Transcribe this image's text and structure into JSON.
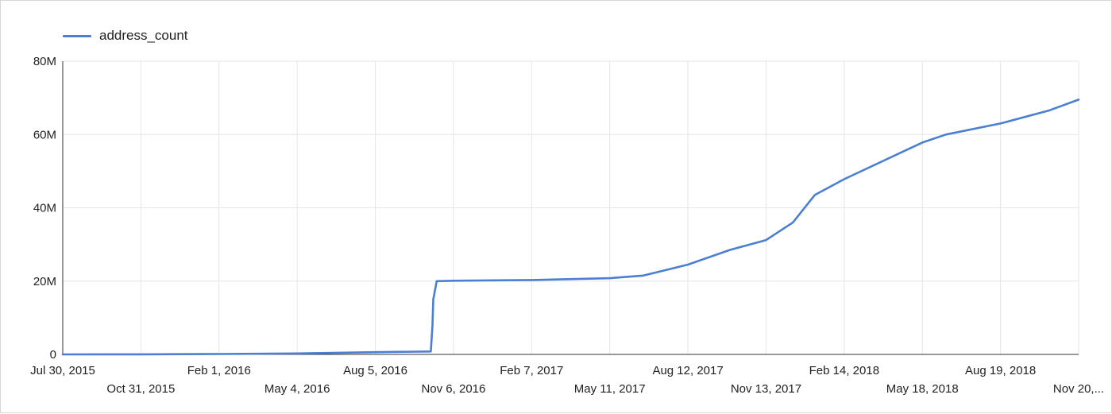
{
  "chart_data": {
    "type": "line",
    "legend": {
      "position": "top-left"
    },
    "grid": true,
    "x_tick_labels_row1": [
      "Jul 30, 2015",
      "Feb 1, 2016",
      "Aug 5, 2016",
      "Feb 7, 2017",
      "Aug 12, 2017",
      "Feb 14, 2018",
      "Aug 19, 2018"
    ],
    "x_tick_labels_row2": [
      "Oct 31, 2015",
      "May 4, 2016",
      "Nov 6, 2016",
      "May 11, 2017",
      "Nov 13, 2017",
      "May 18, 2018",
      "Nov 20,..."
    ],
    "y_tick_labels": [
      "0",
      "20M",
      "40M",
      "60M",
      "80M"
    ],
    "ylim": [
      0,
      80000000
    ],
    "xlim": [
      "2015-07-30",
      "2018-11-20"
    ],
    "series": [
      {
        "name": "address_count",
        "color": "#4a7fd1",
        "x": [
          "2015-07-30",
          "2015-10-31",
          "2016-02-01",
          "2016-05-04",
          "2016-08-05",
          "2016-10-10",
          "2016-10-12",
          "2016-10-13",
          "2016-10-17",
          "2016-11-06",
          "2017-02-07",
          "2017-05-11",
          "2017-06-20",
          "2017-08-12",
          "2017-10-01",
          "2017-11-13",
          "2017-12-15",
          "2018-01-10",
          "2018-02-14",
          "2018-05-18",
          "2018-06-15",
          "2018-08-19",
          "2018-10-15",
          "2018-11-20"
        ],
        "values": [
          0,
          30000,
          100000,
          250000,
          600000,
          800000,
          8000000,
          15000000,
          20000000,
          20100000,
          20300000,
          20800000,
          21500000,
          24500000,
          28500000,
          31200000,
          36000000,
          43500000,
          47800000,
          57800000,
          60000000,
          63000000,
          66500000,
          69500000
        ]
      }
    ]
  }
}
